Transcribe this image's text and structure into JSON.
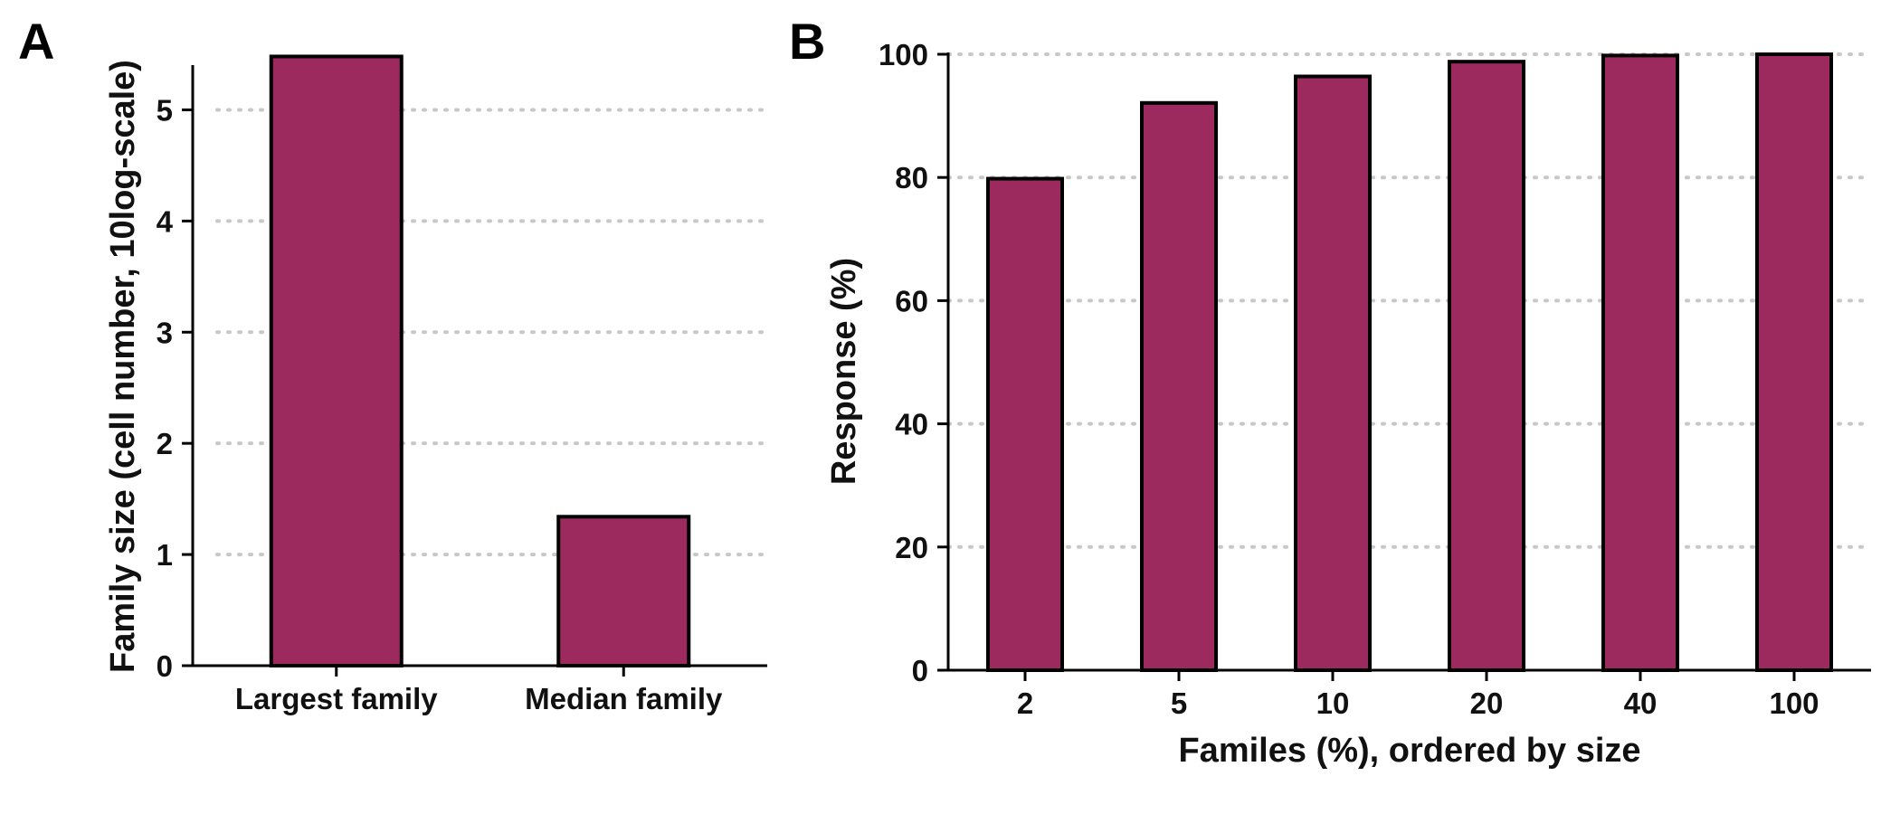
{
  "chart_data": [
    {
      "panel_label": "A",
      "type": "bar",
      "categories": [
        "Largest family",
        "Median family"
      ],
      "values": [
        5.48,
        1.34
      ],
      "xlabel": "",
      "ylabel": "Family size (cell number, 10log-scale)",
      "ylim": [
        0,
        5.5
      ],
      "yticks": [
        0,
        1,
        2,
        3,
        4,
        5
      ],
      "grid": "horizontal dotted",
      "bar_color": "#9c2a5e"
    },
    {
      "panel_label": "B",
      "type": "bar",
      "categories": [
        "2",
        "5",
        "10",
        "20",
        "40",
        "100"
      ],
      "values": [
        79.8,
        92.1,
        96.4,
        98.8,
        99.8,
        100
      ],
      "xlabel": "Familes (%), ordered by size",
      "ylabel": "Response (%)",
      "ylim": [
        0,
        100
      ],
      "yticks": [
        0,
        20,
        40,
        60,
        80,
        100
      ],
      "grid": "horizontal dotted",
      "bar_color": "#9c2a5e"
    }
  ]
}
